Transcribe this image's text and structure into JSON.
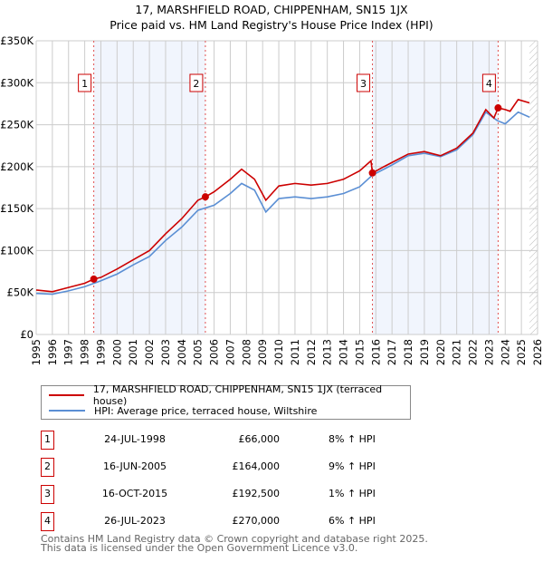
{
  "title": "17, MARSHFIELD ROAD, CHIPPENHAM, SN15 1JX",
  "subtitle": "Price paid vs. HM Land Registry's House Price Index (HPI)",
  "chart_data": {
    "type": "line",
    "title": "17, MARSHFIELD ROAD, CHIPPENHAM, SN15 1JX — Price paid vs. HM Land Registry's House Price Index (HPI)",
    "xlim": [
      1995,
      2026
    ],
    "ylim": [
      0,
      350000
    ],
    "x_ticks": [
      "1995",
      "1996",
      "1997",
      "1998",
      "1999",
      "2000",
      "2001",
      "2002",
      "2003",
      "2004",
      "2005",
      "2006",
      "2007",
      "2008",
      "2009",
      "2010",
      "2011",
      "2012",
      "2013",
      "2014",
      "2015",
      "2016",
      "2017",
      "2018",
      "2019",
      "2020",
      "2021",
      "2022",
      "2023",
      "2024",
      "2025",
      "2026"
    ],
    "y_ticks": [
      {
        "v": 0,
        "label": "£0"
      },
      {
        "v": 50000,
        "label": "£50K"
      },
      {
        "v": 100000,
        "label": "£100K"
      },
      {
        "v": 150000,
        "label": "£150K"
      },
      {
        "v": 200000,
        "label": "£200K"
      },
      {
        "v": 250000,
        "label": "£250K"
      },
      {
        "v": 300000,
        "label": "£300K"
      },
      {
        "v": 350000,
        "label": "£350K"
      }
    ],
    "grid": true,
    "series": [
      {
        "name": "17, MARSHFIELD ROAD, CHIPPENHAM, SN15 1JX (terraced house)",
        "color": "#cc0000",
        "x": [
          1995,
          1996,
          1997,
          1998,
          1998.56,
          1999,
          2000,
          2001,
          2002,
          2003,
          2004,
          2005,
          2005.46,
          2006,
          2007,
          2007.7,
          2008.5,
          2009.2,
          2010,
          2011,
          2012,
          2013,
          2014,
          2015,
          2015.7,
          2015.79,
          2016.5,
          2017,
          2018,
          2019,
          2020,
          2021,
          2022,
          2022.8,
          2023.3,
          2023.56,
          2024,
          2024.3,
          2024.8,
          2025.5
        ],
        "y": [
          53000,
          51000,
          56000,
          61000,
          66000,
          68000,
          78000,
          89000,
          100000,
          120000,
          138000,
          160000,
          164000,
          170000,
          185000,
          197000,
          185000,
          160000,
          177000,
          180000,
          178000,
          180000,
          185000,
          195000,
          207000,
          192500,
          200000,
          205000,
          215000,
          218000,
          213000,
          222000,
          240000,
          268000,
          258000,
          270000,
          268000,
          266000,
          280000,
          276000
        ]
      },
      {
        "name": "HPI: Average price, terraced house, Wiltshire",
        "color": "#5b8fd4",
        "x": [
          1995,
          1996,
          1997,
          1998,
          1999,
          2000,
          2001,
          2002,
          2003,
          2004,
          2005,
          2006,
          2007,
          2007.7,
          2008.5,
          2009.2,
          2010,
          2011,
          2012,
          2013,
          2014,
          2015,
          2015.79,
          2016.5,
          2017,
          2018,
          2019,
          2020,
          2021,
          2022,
          2022.8,
          2023.5,
          2024,
          2024.8,
          2025.5
        ],
        "y": [
          49000,
          48000,
          52000,
          57000,
          64000,
          72000,
          83000,
          93000,
          112000,
          128000,
          148000,
          154000,
          168000,
          180000,
          172000,
          146000,
          162000,
          164000,
          162000,
          164000,
          168000,
          176000,
          190000,
          197000,
          202000,
          213000,
          216000,
          212000,
          220000,
          238000,
          265000,
          255000,
          251000,
          265000,
          259000
        ]
      }
    ],
    "sales": [
      {
        "n": "1",
        "x": 1998.56,
        "y": 66000,
        "date": "24-JUL-1998",
        "price": "£66,000",
        "hpi": "8% ↑ HPI"
      },
      {
        "n": "2",
        "x": 2005.46,
        "y": 164000,
        "date": "16-JUN-2005",
        "price": "£164,000",
        "hpi": "9% ↑ HPI"
      },
      {
        "n": "3",
        "x": 2015.79,
        "y": 192500,
        "date": "16-OCT-2015",
        "price": "£192,500",
        "hpi": "1% ↑ HPI"
      },
      {
        "n": "4",
        "x": 2023.56,
        "y": 270000,
        "date": "26-JUL-2023",
        "price": "£270,000",
        "hpi": "6% ↑ HPI"
      }
    ],
    "shaded_ranges": [
      [
        1998.56,
        2005.46
      ],
      [
        2015.79,
        2023.56
      ]
    ],
    "projection_from": 2025.5,
    "legend_placement": "below"
  },
  "legend": {
    "property": "17, MARSHFIELD ROAD, CHIPPENHAM, SN15 1JX (terraced house)",
    "hpi": "HPI: Average price, terraced house, Wiltshire"
  },
  "footer": {
    "line1": "Contains HM Land Registry data © Crown copyright and database right 2025.",
    "line2": "This data is licensed under the Open Government Licence v3.0."
  }
}
